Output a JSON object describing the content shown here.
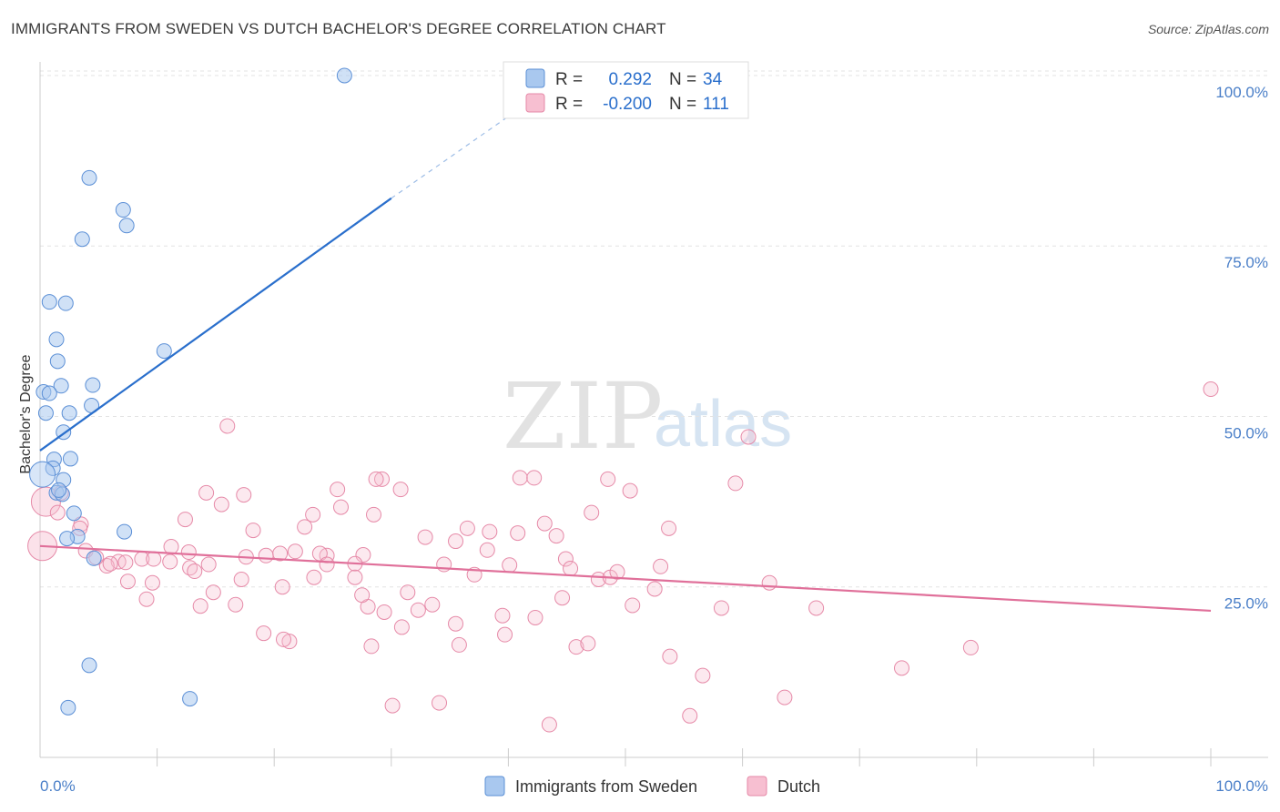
{
  "title": "IMMIGRANTS FROM SWEDEN VS DUTCH BACHELOR'S DEGREE CORRELATION CHART",
  "source": "Source: ZipAtlas.com",
  "watermark": {
    "zip": "ZIP",
    "atlas": "atlas"
  },
  "legend": {
    "r_label": "R =",
    "n_label": "N =",
    "sweden": {
      "r": "0.292",
      "n": "34"
    },
    "dutch": {
      "r": "-0.200",
      "n": "111"
    }
  },
  "colors": {
    "sweden_fill": "#a9c8ef",
    "sweden_stroke": "#5b8fd6",
    "sweden_line": "#2a6fcc",
    "dutch_fill": "#f7bfd1",
    "dutch_stroke": "#e68aa8",
    "dutch_line": "#e0709a",
    "tick_text": "#4a7fc8"
  },
  "chart_data": {
    "type": "scatter",
    "title": "IMMIGRANTS FROM SWEDEN VS DUTCH BACHELOR'S DEGREE CORRELATION CHART",
    "xlabel": "",
    "ylabel": "Bachelor's Degree",
    "xlim": [
      0,
      100
    ],
    "ylim": [
      0,
      102
    ],
    "x_tick_labels": {
      "left": "0.0%",
      "right": "100.0%"
    },
    "y_ticks": [
      {
        "value": 25,
        "label": "25.0%"
      },
      {
        "value": 50,
        "label": "50.0%"
      },
      {
        "value": 75,
        "label": "75.0%"
      },
      {
        "value": 100,
        "label": "100.0%"
      }
    ],
    "grid": true,
    "legend_position": "top-center",
    "series": [
      {
        "name": "Immigrants from Sweden",
        "r": 0.292,
        "n": 34,
        "trend": {
          "x0": 0,
          "y0": 45,
          "x1": 30,
          "y1": 82,
          "dash_to_x": 40,
          "dash_to_y": 94
        },
        "points": [
          [
            26,
            100
          ],
          [
            4.2,
            85
          ],
          [
            7.1,
            80.3
          ],
          [
            7.4,
            78
          ],
          [
            3.6,
            76
          ],
          [
            0.8,
            66.8
          ],
          [
            2.2,
            66.6
          ],
          [
            1.4,
            61.3
          ],
          [
            1.5,
            58.1
          ],
          [
            10.6,
            59.6
          ],
          [
            1.8,
            54.5
          ],
          [
            4.5,
            54.6
          ],
          [
            0.3,
            53.6
          ],
          [
            0.8,
            53.4
          ],
          [
            0.5,
            50.5
          ],
          [
            2.5,
            50.5
          ],
          [
            4.4,
            51.6
          ],
          [
            2.0,
            47.7
          ],
          [
            1.2,
            43.7
          ],
          [
            2.6,
            43.8
          ],
          [
            1.1,
            42.4
          ],
          [
            2.0,
            40.7
          ],
          [
            1.4,
            38.8
          ],
          [
            1.9,
            38.6
          ],
          [
            2.9,
            35.8
          ],
          [
            7.2,
            33.1
          ],
          [
            3.2,
            32.4
          ],
          [
            2.3,
            32.1
          ],
          [
            4.6,
            29.2
          ],
          [
            4.2,
            13.5
          ],
          [
            2.4,
            7.3
          ],
          [
            12.8,
            8.6
          ],
          [
            0.2,
            41.5
          ],
          [
            1.6,
            39.2
          ]
        ]
      },
      {
        "name": "Dutch",
        "r": -0.2,
        "n": 111,
        "trend": {
          "x0": 0,
          "y0": 31,
          "x1": 100,
          "y1": 21.5
        },
        "points": [
          [
            100,
            54
          ],
          [
            60.5,
            47
          ],
          [
            16,
            48.6
          ],
          [
            0.5,
            37.5
          ],
          [
            0.2,
            31
          ],
          [
            1.8,
            38.8
          ],
          [
            1.5,
            35.9
          ],
          [
            3.5,
            34.2
          ],
          [
            3.4,
            33.6
          ],
          [
            14.2,
            38.8
          ],
          [
            17.4,
            38.5
          ],
          [
            15.5,
            37.1
          ],
          [
            25.4,
            39.3
          ],
          [
            25.7,
            36.7
          ],
          [
            29.2,
            40.8
          ],
          [
            28.7,
            40.8
          ],
          [
            30.8,
            39.3
          ],
          [
            41,
            41
          ],
          [
            42.2,
            41
          ],
          [
            48.5,
            40.8
          ],
          [
            50.4,
            39.1
          ],
          [
            59.4,
            40.2
          ],
          [
            12.4,
            34.9
          ],
          [
            22.6,
            33.8
          ],
          [
            18.2,
            33.3
          ],
          [
            28.5,
            35.6
          ],
          [
            23.3,
            35.6
          ],
          [
            36.5,
            33.6
          ],
          [
            38.4,
            33.1
          ],
          [
            43.1,
            34.3
          ],
          [
            47.1,
            35.9
          ],
          [
            53.7,
            33.6
          ],
          [
            40.8,
            32.9
          ],
          [
            32.9,
            32.3
          ],
          [
            44.1,
            32.5
          ],
          [
            35.5,
            31.7
          ],
          [
            24.5,
            29.6
          ],
          [
            11.2,
            30.9
          ],
          [
            12.7,
            30.1
          ],
          [
            3.9,
            30.3
          ],
          [
            8.7,
            29.1
          ],
          [
            6.7,
            28.7
          ],
          [
            7.3,
            28.6
          ],
          [
            5.7,
            28.1
          ],
          [
            4.8,
            29.3
          ],
          [
            9.7,
            29.1
          ],
          [
            11.1,
            28.7
          ],
          [
            14.4,
            28.3
          ],
          [
            12.8,
            27.8
          ],
          [
            19.3,
            29.6
          ],
          [
            17.6,
            29.4
          ],
          [
            20.5,
            29.9
          ],
          [
            21.8,
            30.2
          ],
          [
            23.9,
            29.9
          ],
          [
            27.6,
            29.7
          ],
          [
            26.9,
            28.4
          ],
          [
            24.5,
            28.3
          ],
          [
            34.5,
            28.3
          ],
          [
            40.1,
            28.2
          ],
          [
            44.9,
            29.1
          ],
          [
            45.3,
            27.7
          ],
          [
            38.2,
            30.4
          ],
          [
            9.6,
            25.6
          ],
          [
            13.2,
            27.3
          ],
          [
            14.8,
            24.2
          ],
          [
            17.2,
            26.1
          ],
          [
            20.7,
            25.0
          ],
          [
            23.4,
            26.4
          ],
          [
            28.0,
            22.1
          ],
          [
            27.5,
            23.8
          ],
          [
            33.5,
            22.4
          ],
          [
            29.4,
            21.3
          ],
          [
            32.3,
            21.6
          ],
          [
            31.4,
            24.2
          ],
          [
            26.9,
            26.4
          ],
          [
            35.5,
            19.6
          ],
          [
            39.5,
            20.8
          ],
          [
            42.3,
            20.5
          ],
          [
            44.6,
            23.4
          ],
          [
            47.7,
            26.1
          ],
          [
            48.7,
            26.4
          ],
          [
            50.6,
            22.3
          ],
          [
            52.5,
            24.7
          ],
          [
            58.2,
            21.9
          ],
          [
            62.3,
            25.6
          ],
          [
            66.3,
            21.9
          ],
          [
            7.5,
            25.8
          ],
          [
            9.1,
            23.2
          ],
          [
            13.7,
            22.2
          ],
          [
            16.7,
            22.4
          ],
          [
            19.1,
            18.2
          ],
          [
            21.3,
            17.0
          ],
          [
            20.8,
            17.3
          ],
          [
            28.3,
            16.3
          ],
          [
            30.9,
            19.1
          ],
          [
            35.8,
            16.5
          ],
          [
            39.7,
            18.0
          ],
          [
            45.8,
            16.2
          ],
          [
            46.8,
            16.7
          ],
          [
            53.8,
            14.8
          ],
          [
            56.6,
            12.0
          ],
          [
            73.6,
            13.1
          ],
          [
            79.5,
            16.1
          ],
          [
            30.1,
            7.6
          ],
          [
            34.1,
            8.0
          ],
          [
            43.5,
            4.8
          ],
          [
            55.5,
            6.1
          ],
          [
            63.6,
            8.8
          ],
          [
            6.0,
            28.4
          ],
          [
            49.3,
            27.2
          ],
          [
            37.1,
            26.8
          ],
          [
            53.0,
            28.0
          ]
        ]
      }
    ]
  }
}
